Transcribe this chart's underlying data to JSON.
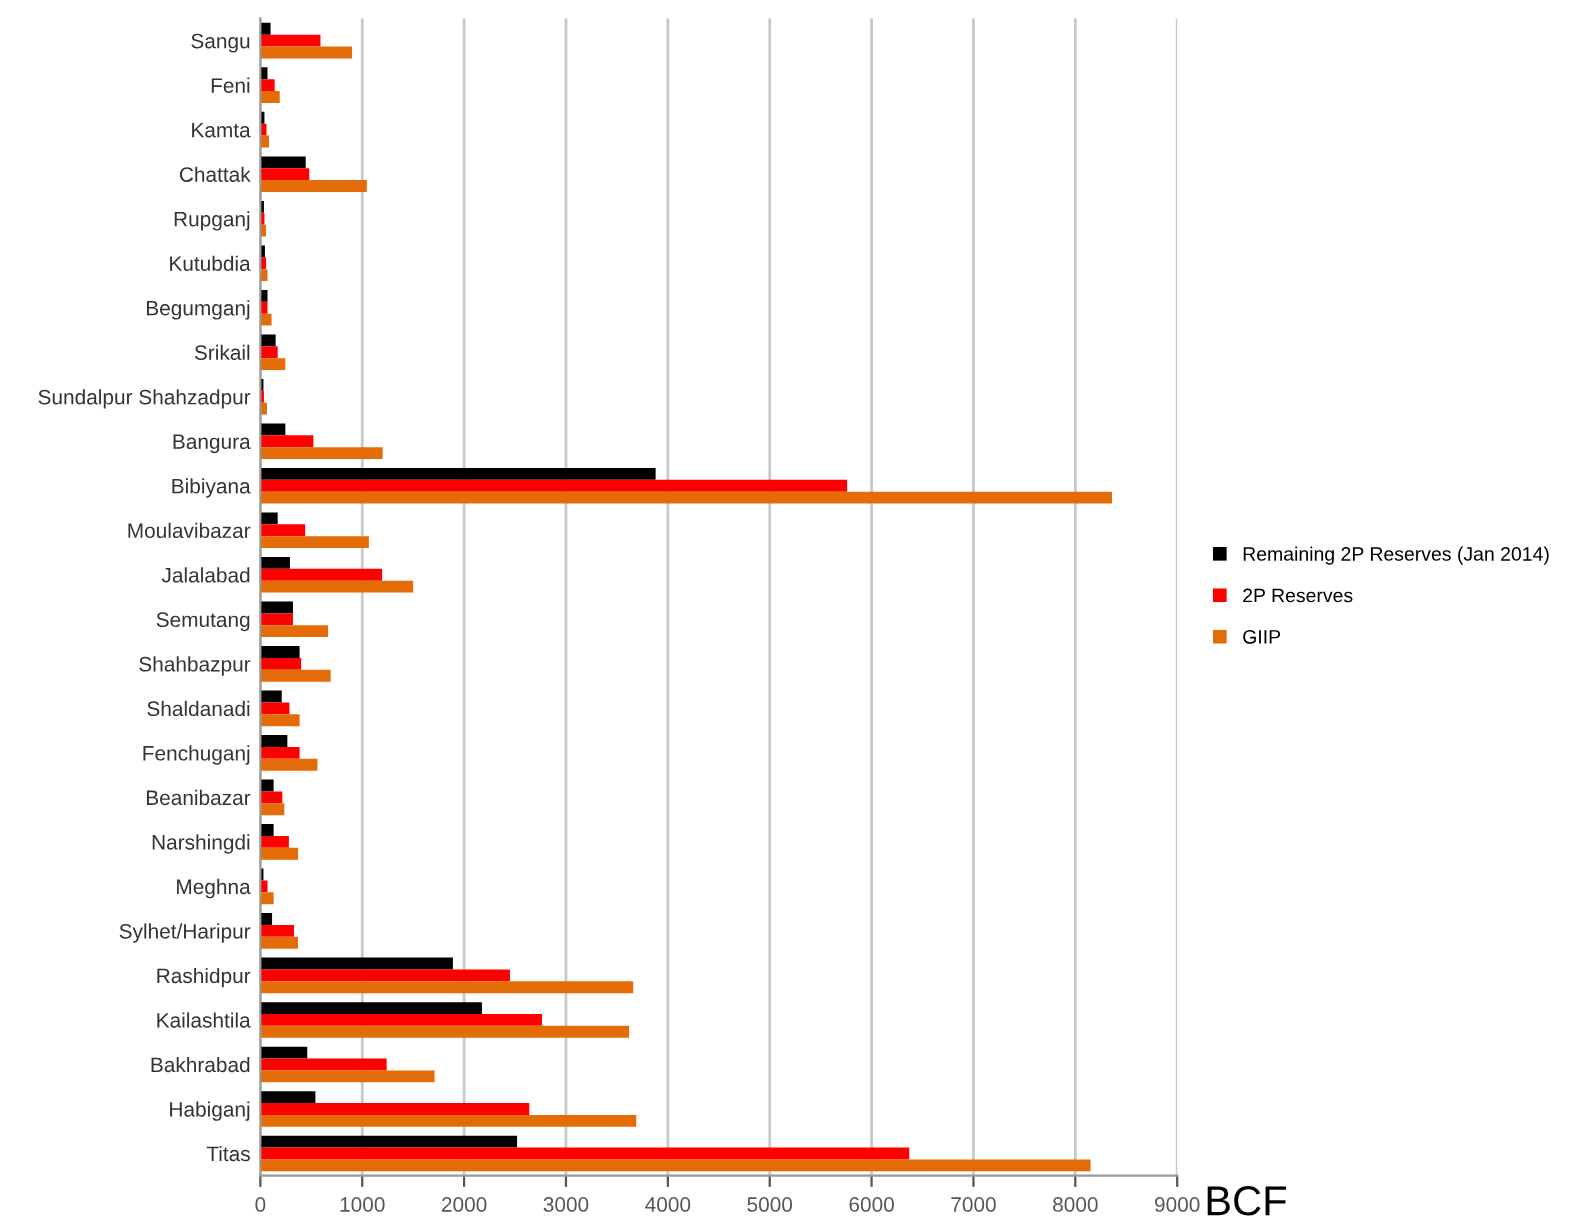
{
  "chart_data": {
    "type": "bar",
    "orientation": "horizontal",
    "xlabel": "BCF",
    "categories": [
      "Sangu",
      "Feni",
      "Kamta",
      "Chattak",
      "Rupganj",
      "Kutubdia",
      "Begumganj",
      "Srikail",
      "Sundalpur Shahzadpur",
      "Bangura",
      "Bibiyana",
      "Moulavibazar",
      "Jalalabad",
      "Semutang",
      "Shahbazpur",
      "Shaldanadi",
      "Fenchuganj",
      "Beanibazar",
      "Narshingdi",
      "Meghna",
      "Sylhet/Haripur",
      "Rashidpur",
      "Kailashtila",
      "Bakhrabad",
      "Habiganj",
      "Titas"
    ],
    "series": [
      {
        "name": "Remaining 2P Reserves (Jan 2014)",
        "color": "#000000",
        "values": [
          100,
          70,
          40,
          445,
          35,
          45,
          70,
          150,
          30,
          245,
          3880,
          170,
          290,
          320,
          385,
          210,
          265,
          130,
          130,
          30,
          115,
          1890,
          2175,
          460,
          540,
          2520
        ]
      },
      {
        "name": "2P Reserves",
        "color": "#ff0000",
        "values": [
          590,
          140,
          60,
          480,
          40,
          55,
          70,
          170,
          35,
          520,
          5760,
          440,
          1195,
          320,
          400,
          285,
          385,
          215,
          280,
          70,
          330,
          2450,
          2765,
          1240,
          2640,
          6370
        ]
      },
      {
        "name": "GIIP",
        "color": "#e36c09",
        "values": [
          900,
          190,
          85,
          1045,
          55,
          70,
          110,
          245,
          65,
          1200,
          8360,
          1065,
          1500,
          665,
          690,
          385,
          560,
          235,
          370,
          130,
          370,
          3660,
          3620,
          1710,
          3690,
          8150
        ]
      }
    ],
    "xlim": [
      0,
      9000
    ],
    "xticks": [
      0,
      1000,
      2000,
      3000,
      4000,
      5000,
      6000,
      7000,
      8000,
      9000
    ],
    "grid": "x",
    "legend": "right"
  }
}
